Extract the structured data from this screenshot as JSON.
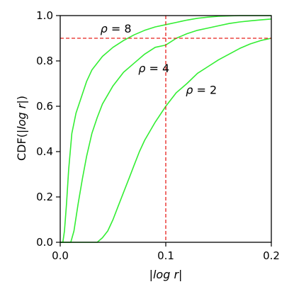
{
  "chart_data": {
    "type": "line",
    "xlabel": {
      "pre": "|",
      "ital": "log r",
      "post": "|"
    },
    "ylabel": {
      "pre": "CDF(|",
      "ital": "log r",
      "post": "|)"
    },
    "xlim": [
      0.0,
      0.2
    ],
    "ylim": [
      0.0,
      1.0
    ],
    "xticks": [
      0.0,
      0.1,
      0.2
    ],
    "xtick_labels": [
      "0.0",
      "0.1",
      "0.2"
    ],
    "yticks": [
      0.0,
      0.2,
      0.4,
      0.6,
      0.8,
      1.0
    ],
    "ytick_labels": [
      "0.0",
      "0.2",
      "0.4",
      "0.6",
      "0.8",
      "1.0"
    ],
    "grid": false,
    "line_color": "#33ee33",
    "ref_color": "#e8211c",
    "reference_lines": {
      "x": 0.1,
      "y": 0.9
    },
    "series": [
      {
        "x": [
          0.0,
          0.0025,
          0.004,
          0.006,
          0.008,
          0.011,
          0.015,
          0.02,
          0.025,
          0.03,
          0.04,
          0.05,
          0.06,
          0.07,
          0.08,
          0.09,
          0.1,
          0.11,
          0.12,
          0.13,
          0.14,
          0.15,
          0.17,
          0.2
        ],
        "y": [
          0.0,
          0.0,
          0.05,
          0.17,
          0.32,
          0.48,
          0.57,
          0.64,
          0.71,
          0.76,
          0.82,
          0.86,
          0.89,
          0.915,
          0.935,
          0.95,
          0.96,
          0.97,
          0.98,
          0.988,
          0.993,
          0.997,
          1.0,
          1.0
        ]
      },
      {
        "x": [
          0.0,
          0.01,
          0.013,
          0.017,
          0.021,
          0.025,
          0.03,
          0.035,
          0.04,
          0.05,
          0.06,
          0.07,
          0.08,
          0.09,
          0.1,
          0.11,
          0.12,
          0.13,
          0.14,
          0.15,
          0.16,
          0.17,
          0.18,
          0.19,
          0.2
        ],
        "y": [
          0.0,
          0.0,
          0.05,
          0.17,
          0.28,
          0.38,
          0.48,
          0.55,
          0.61,
          0.69,
          0.75,
          0.79,
          0.83,
          0.86,
          0.87,
          0.9,
          0.92,
          0.935,
          0.945,
          0.955,
          0.965,
          0.972,
          0.977,
          0.981,
          0.985
        ]
      },
      {
        "x": [
          0.0,
          0.035,
          0.04,
          0.045,
          0.05,
          0.055,
          0.06,
          0.065,
          0.07,
          0.075,
          0.08,
          0.09,
          0.1,
          0.11,
          0.12,
          0.13,
          0.14,
          0.15,
          0.16,
          0.17,
          0.18,
          0.19,
          0.2
        ],
        "y": [
          0.0,
          0.0,
          0.02,
          0.05,
          0.1,
          0.16,
          0.22,
          0.28,
          0.34,
          0.4,
          0.45,
          0.53,
          0.6,
          0.66,
          0.7,
          0.745,
          0.775,
          0.805,
          0.83,
          0.855,
          0.875,
          0.89,
          0.9
        ]
      }
    ],
    "annotations": [
      {
        "lhs": "ρ",
        "rhs": " = 8",
        "x": 0.038,
        "y": 0.925
      },
      {
        "lhs": "ρ",
        "rhs": " = 4",
        "x": 0.074,
        "y": 0.75
      },
      {
        "lhs": "ρ",
        "rhs": " = 2",
        "x": 0.119,
        "y": 0.655
      }
    ]
  }
}
